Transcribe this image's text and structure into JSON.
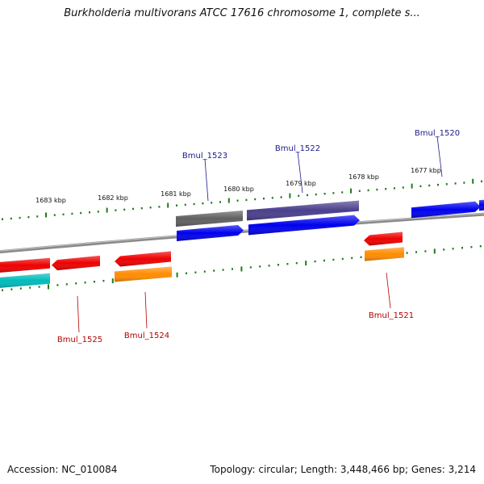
{
  "title": "Burkholderia multivorans ATCC 17616 chromosome 1, complete s...",
  "footer": {
    "accession": "Accession: NC_010084",
    "topology": "Topology: circular; Length: 3,448,466 bp; Genes: 3,214"
  },
  "colors": {
    "backbone": "#8a8a8a",
    "tick": "#1f7a1f",
    "label_forward": "#1a1a8c",
    "label_reverse": "#b30000"
  },
  "position_labels": [
    "1683 kbp",
    "1682 kbp",
    "1681 kbp",
    "1680 kbp",
    "1679 kbp",
    "1678 kbp",
    "1677 kbp"
  ],
  "genes_forward": [
    {
      "name": "Bmul_1523",
      "color": "#0000ee",
      "shape": "arrow-right"
    },
    {
      "name": "Bmul_1522",
      "color": "#0000ee",
      "shape": "arrow-right"
    },
    {
      "name": "Bmul_1520",
      "color": "#0000ee",
      "shape": "arrow-right"
    }
  ],
  "features_forward": [
    {
      "color": "#606060"
    },
    {
      "color": "#4a3f8c"
    }
  ],
  "genes_reverse": [
    {
      "name": "Bmul_1525",
      "color": "#ee0000",
      "shape": "arrow-left"
    },
    {
      "name": "Bmul_1524",
      "color": "#ee0000",
      "shape": "arrow-left"
    },
    {
      "name": "Bmul_1521",
      "color": "#ee0000",
      "shape": "arrow-left"
    }
  ],
  "features_reverse": [
    {
      "color": "#ee0000"
    },
    {
      "color": "#00bbbb"
    },
    {
      "color": "#ff8c00"
    },
    {
      "color": "#ff8c00"
    }
  ]
}
